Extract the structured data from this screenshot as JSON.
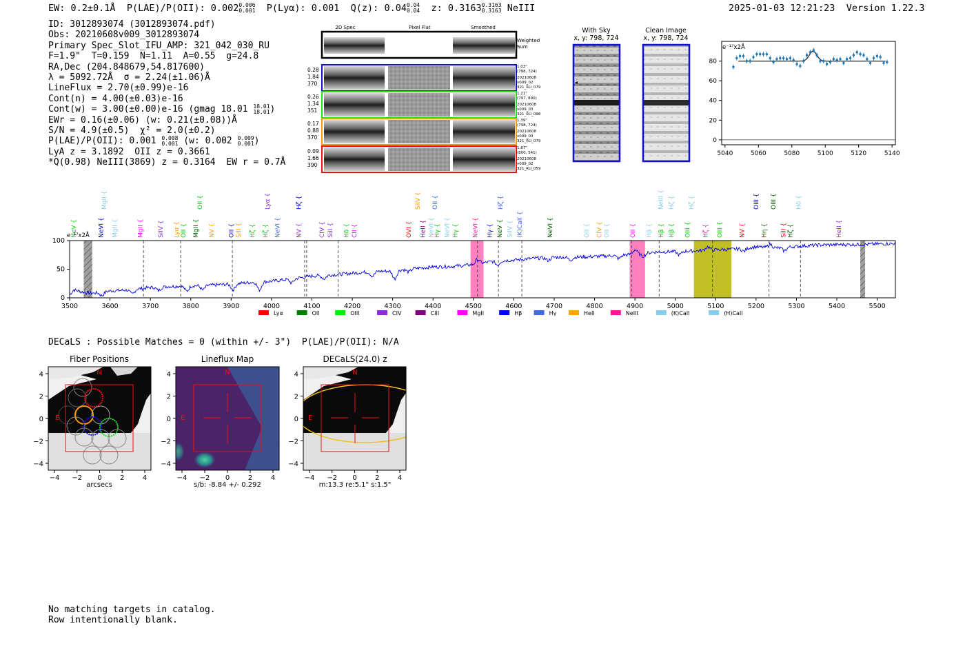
{
  "header": {
    "ew": "EW: 0.2±0.1Å",
    "plae_label": "P(LAE)/P(OII): 0.002",
    "plae_up": "0.006",
    "plae_lo": "0.001",
    "plya": "P(Lyα): 0.001",
    "qz": "Q(z): 0.04",
    "qz_up": "0.04",
    "qz_lo": "0.04",
    "z": "z: 0.3163",
    "z_up": "0.3163",
    "z_lo": "0.3163",
    "line": "NeIII",
    "timestamp": "2025-01-03 12:21:23",
    "version": "Version 1.22.3"
  },
  "info": {
    "id": "ID: 3012893074 (3012893074.pdf)",
    "obs": "Obs: 20210608v009_3012893074",
    "primary": "Primary Spec_Slot_IFU_AMP: 321_042_030_RU",
    "fibers": "F=1.9\"  T=0.159  N=1.11  A=0.55  g=24.8",
    "radec": "RA,Dec (204.848679,54.817600)",
    "lambda": "λ = 5092.72Å  σ = 2.24(±1.06)Å",
    "lineflux": "LineFlux = 2.70(±0.99)e-16",
    "contn": "Cont(n) = 4.00(±0.03)e-16",
    "contw": "Cont(w) = 3.00(±0.00)e-16 (gmag 18.01",
    "gmag_up": "18.01",
    "gmag_lo": "18.01",
    "ewr": "EWr = 0.16(±0.06) (w: 0.21(±0.08))Å",
    "sn": "S/N = 4.9(±0.5)  χ² = 2.0(±0.2)",
    "plae2": "P(LAE)/P(OII): 0.001",
    "plae2_up": "0.008",
    "plae2_lo": "0.001",
    "plae2_w": "(w: 0.002",
    "plae2_w_up": "0.009",
    "plae2_w_lo": "0.001",
    "lya_z": "LyA z = 3.1892  OII z = 0.3661",
    "q_line": "*Q(0.98) NeIII(3869) z = 0.3164  EW r = 0.7Å"
  },
  "cutouts": {
    "col_2d": "2D Spec",
    "col_flat": "Pixel Flat",
    "col_smooth": "Smoothed",
    "weighted": "Weighted",
    "sum": "Sum",
    "rows": [
      {
        "color": "#1010d0",
        "v1": "0.28",
        "v2": "1.84",
        "v3": "370",
        "r1": "1.03\"",
        "r2": "(798, 724)",
        "r3": "20210608",
        "r4": "v009_02",
        "r5": "321_RU_079"
      },
      {
        "color": "#22dd22",
        "v1": "0.26",
        "v2": "1.34",
        "v3": "351",
        "r1": "1.21\"",
        "r2": "(797, 890)",
        "r3": "20210608",
        "r4": "v009_03",
        "r5": "321_RU_098"
      },
      {
        "color": "#ff9900",
        "v1": "0.17",
        "v2": "0.88",
        "v3": "370",
        "r1": "1.39\"",
        "r2": "(798, 724)",
        "r3": "20210608",
        "r4": "v009_03",
        "r5": "321_RU_079"
      },
      {
        "color": "#ee1111",
        "v1": "0.09",
        "v2": "1.66",
        "v3": "390",
        "r1": "1.87\"",
        "r2": "(800, 541)",
        "r3": "20210608",
        "r4": "v009_02",
        "r5": "321_RU_059"
      }
    ]
  },
  "sky": {
    "with_title": "With Sky",
    "with_coords": "x, y: 798, 724",
    "clean_title": "Clean Image",
    "clean_coords": "x, y: 798, 724"
  },
  "chart_data": [
    {
      "type": "scatter",
      "name": "zoom_fit",
      "ylabel": "e⁻¹⁷x2Å",
      "xlim": [
        5038,
        5142
      ],
      "ylim": [
        -5,
        100
      ],
      "xticks": [
        5040,
        5060,
        5080,
        5100,
        5120,
        5140
      ],
      "yticks": [
        0,
        20,
        40,
        60,
        80
      ],
      "points": [
        [
          5045,
          74
        ],
        [
          5047,
          83
        ],
        [
          5049,
          85
        ],
        [
          5051,
          85
        ],
        [
          5053,
          80
        ],
        [
          5055,
          80
        ],
        [
          5057,
          84
        ],
        [
          5059,
          87
        ],
        [
          5061,
          87
        ],
        [
          5063,
          87
        ],
        [
          5065,
          87
        ],
        [
          5067,
          83
        ],
        [
          5069,
          79
        ],
        [
          5071,
          82
        ],
        [
          5073,
          83
        ],
        [
          5075,
          83
        ],
        [
          5077,
          82
        ],
        [
          5079,
          83
        ],
        [
          5081,
          81
        ],
        [
          5083,
          77
        ],
        [
          5085,
          75
        ],
        [
          5087,
          80
        ],
        [
          5089,
          86
        ],
        [
          5091,
          89
        ],
        [
          5093,
          91
        ],
        [
          5095,
          86
        ],
        [
          5097,
          80
        ],
        [
          5099,
          80
        ],
        [
          5101,
          77
        ],
        [
          5103,
          79
        ],
        [
          5105,
          82
        ],
        [
          5107,
          81
        ],
        [
          5109,
          82
        ],
        [
          5111,
          78
        ],
        [
          5113,
          82
        ],
        [
          5115,
          83
        ],
        [
          5117,
          86
        ],
        [
          5119,
          89
        ],
        [
          5121,
          87
        ],
        [
          5123,
          86
        ],
        [
          5125,
          82
        ],
        [
          5127,
          78
        ],
        [
          5129,
          83
        ],
        [
          5131,
          85
        ],
        [
          5133,
          84
        ],
        [
          5135,
          78
        ],
        [
          5137,
          79
        ]
      ],
      "fit": {
        "continuum": 80,
        "center": 5092.72,
        "sigma": 2.24,
        "amplitude": 10,
        "x_range": [
          5048,
          5136
        ]
      }
    },
    {
      "type": "line",
      "name": "full_spectrum",
      "ylabel": "e⁻¹⁷x2Å",
      "xlim": [
        3500,
        5545
      ],
      "ylim": [
        0,
        100
      ],
      "xticks": [
        3500,
        3600,
        3700,
        3800,
        3900,
        4000,
        4100,
        4200,
        4300,
        4400,
        4500,
        4600,
        4700,
        4800,
        4900,
        5000,
        5100,
        5200,
        5300,
        5400,
        5500
      ],
      "yticks": [
        0,
        50,
        100
      ],
      "anchors": [
        [
          3500,
          5
        ],
        [
          3510,
          14
        ],
        [
          3540,
          9
        ],
        [
          3560,
          8
        ],
        [
          3600,
          12
        ],
        [
          3650,
          14
        ],
        [
          3700,
          18
        ],
        [
          3750,
          20
        ],
        [
          3800,
          21
        ],
        [
          3850,
          22
        ],
        [
          3900,
          24
        ],
        [
          3950,
          27
        ],
        [
          4000,
          29
        ],
        [
          4050,
          33
        ],
        [
          4100,
          38
        ],
        [
          4150,
          40
        ],
        [
          4200,
          43
        ],
        [
          4250,
          46
        ],
        [
          4300,
          47
        ],
        [
          4350,
          51
        ],
        [
          4400,
          54
        ],
        [
          4450,
          55
        ],
        [
          4500,
          58
        ],
        [
          4550,
          64
        ],
        [
          4600,
          66
        ],
        [
          4650,
          69
        ],
        [
          4700,
          71
        ],
        [
          4750,
          71
        ],
        [
          4800,
          72
        ],
        [
          4850,
          74
        ],
        [
          4900,
          76
        ],
        [
          4950,
          80
        ],
        [
          5000,
          81
        ],
        [
          5050,
          82
        ],
        [
          5100,
          84
        ],
        [
          5150,
          85
        ],
        [
          5200,
          89
        ],
        [
          5250,
          87
        ],
        [
          5300,
          90
        ],
        [
          5350,
          92
        ],
        [
          5400,
          93
        ],
        [
          5450,
          93
        ],
        [
          5500,
          94
        ],
        [
          5545,
          95
        ]
      ],
      "dips": [
        [
          3580,
          -6
        ],
        [
          3655,
          -8
        ],
        [
          3720,
          -6
        ],
        [
          3790,
          -9
        ],
        [
          3830,
          -8
        ],
        [
          3905,
          -10
        ],
        [
          3970,
          -14
        ],
        [
          4050,
          -7
        ],
        [
          4130,
          -6
        ],
        [
          4250,
          -8
        ],
        [
          4305,
          -14
        ],
        [
          4340,
          -5
        ],
        [
          4560,
          -7
        ],
        [
          4685,
          -5
        ],
        [
          4740,
          -5
        ],
        [
          4860,
          -6
        ],
        [
          4920,
          -5
        ],
        [
          5010,
          -6
        ],
        [
          5170,
          -5
        ],
        [
          5270,
          -6
        ]
      ],
      "bumps": [
        [
          4510,
          8
        ],
        [
          4900,
          8
        ],
        [
          5080,
          6
        ],
        [
          5235,
          6
        ]
      ],
      "shaded_regions": [
        {
          "from": 4493,
          "to": 4525,
          "color": "#ff69b4"
        },
        {
          "from": 4887,
          "to": 4925,
          "color": "#ff69b4"
        },
        {
          "from": 5046,
          "to": 5139,
          "color": "#b5b500"
        }
      ],
      "masked_regions": [
        [
          3535,
          3556
        ],
        [
          5458,
          5470
        ]
      ],
      "dashed_lines": [
        3683,
        3775,
        3903,
        4082,
        4087,
        4165,
        4510,
        4562,
        4620,
        4892,
        4960,
        5092,
        5232,
        5310
      ],
      "legend": [
        {
          "label": "Lyα",
          "color": "#ff0000"
        },
        {
          "label": "OII",
          "color": "#008000"
        },
        {
          "label": "OIII",
          "color": "#00ee00"
        },
        {
          "label": "CIV",
          "color": "#8a2be2"
        },
        {
          "label": "CIII",
          "color": "#800080"
        },
        {
          "label": "MgII",
          "color": "#ff00ff"
        },
        {
          "label": "Hβ",
          "color": "#0000ff"
        },
        {
          "label": "Hγ",
          "color": "#4169e1"
        },
        {
          "label": "HeII",
          "color": "#ffa500"
        },
        {
          "label": "NeIII",
          "color": "#ff1493"
        },
        {
          "label": "(K)CaII",
          "color": "#87ceeb"
        },
        {
          "label": "(H)CaII",
          "color": "#87ceeb"
        }
      ]
    }
  ],
  "line_labels_row1": [
    {
      "t": "NeV",
      "c": "#00dd00",
      "w": 3510
    },
    {
      "t": "NeVI",
      "c": "#0000cc",
      "w": 3578
    },
    {
      "t": "MgII",
      "c": "#87ceeb",
      "w": 3612
    },
    {
      "t": "MgII",
      "c": "#ff00ff",
      "w": 3675
    },
    {
      "t": "SiIV",
      "c": "#8a2be2",
      "w": 3725
    },
    {
      "t": "Lyα",
      "c": "#ff9900",
      "w": 3765
    },
    {
      "t": "OII",
      "c": "#00cc00",
      "w": 3782
    },
    {
      "t": "MgII",
      "c": "#006400",
      "w": 3812
    },
    {
      "t": "NV",
      "c": "#ff9900",
      "w": 3852
    },
    {
      "t": "OII",
      "c": "#0000cc",
      "w": 3900
    },
    {
      "t": "SiII",
      "c": "#ff9900",
      "w": 3918
    },
    {
      "t": "Hζ",
      "c": "#00cc00",
      "w": 3952
    },
    {
      "t": "Hζ",
      "c": "#00cc00",
      "w": 3985
    },
    {
      "t": "NeVI",
      "c": "#4169e1",
      "w": 4015
    },
    {
      "t": "NV",
      "c": "#8a2be2",
      "w": 4068
    },
    {
      "t": "CIV",
      "c": "#8a2be2",
      "w": 4125
    },
    {
      "t": "SiII",
      "c": "#8a2be2",
      "w": 4145
    },
    {
      "t": "Hδ",
      "c": "#00cc00",
      "w": 4185
    },
    {
      "t": "CII",
      "c": "#ff00ff",
      "w": 4205
    },
    {
      "t": "OVI",
      "c": "#ff0000",
      "w": 4340
    },
    {
      "t": "HeII",
      "c": "#800080",
      "w": 4375
    },
    {
      "t": "NeVI",
      "c": "#87ceeb",
      "w": 4395
    },
    {
      "t": "Hγ",
      "c": "#00cc00",
      "w": 4410
    },
    {
      "t": "NeVI",
      "c": "#87ceeb",
      "w": 4435
    },
    {
      "t": "Hγ",
      "c": "#00cc00",
      "w": 4455
    },
    {
      "t": "NeVI",
      "c": "#ff1493",
      "w": 4505
    },
    {
      "t": "Hγ",
      "c": "#0000ff",
      "w": 4540
    },
    {
      "t": "NeV",
      "c": "#006400",
      "w": 4565
    },
    {
      "t": "SiIV",
      "c": "#87ceeb",
      "w": 4590
    },
    {
      "t": "(K)CaII",
      "c": "#4169e1",
      "w": 4615
    },
    {
      "t": "NeVI",
      "c": "#006400",
      "w": 4690
    },
    {
      "t": "OII",
      "c": "#87ceeb",
      "w": 4780
    },
    {
      "t": "CIV",
      "c": "#ff9900",
      "w": 4812
    },
    {
      "t": "OII",
      "c": "#87ceeb",
      "w": 4830
    },
    {
      "t": "OII",
      "c": "#ff00ff",
      "w": 4895
    },
    {
      "t": "Hβ",
      "c": "#87ceeb",
      "w": 4935
    },
    {
      "t": "Hβ",
      "c": "#00cc00",
      "w": 4965
    },
    {
      "t": "Hβ",
      "c": "#00cc00",
      "w": 4990
    },
    {
      "t": "OIII",
      "c": "#00cc00",
      "w": 5030
    },
    {
      "t": "Hζ",
      "c": "#ff1493",
      "w": 5075
    },
    {
      "t": "OIII",
      "c": "#00cc00",
      "w": 5110
    },
    {
      "t": "NV",
      "c": "#ff0000",
      "w": 5165
    },
    {
      "t": "Hη",
      "c": "#006400",
      "w": 5220
    },
    {
      "t": "SiII",
      "c": "#ff0000",
      "w": 5268
    },
    {
      "t": "Hζ",
      "c": "#006400",
      "w": 5285
    },
    {
      "t": "HeII",
      "c": "#8a2be2",
      "w": 5405
    }
  ],
  "line_labels_row2": [
    {
      "t": "MgII",
      "c": "#87ceeb",
      "w": 3585
    },
    {
      "t": "OII",
      "c": "#00cc00",
      "w": 3823
    },
    {
      "t": "Lyα",
      "c": "#8a2be2",
      "w": 3990
    },
    {
      "t": "Hζ",
      "c": "#0000cc",
      "w": 4068
    },
    {
      "t": "SiIV",
      "c": "#ff9900",
      "w": 4362
    },
    {
      "t": "OII",
      "c": "#4169e1",
      "w": 4405
    },
    {
      "t": "Hζ",
      "c": "#4169e1",
      "w": 4567
    },
    {
      "t": "NeIII",
      "c": "#87ceeb",
      "w": 4964
    },
    {
      "t": "Hζ",
      "c": "#87ceeb",
      "w": 4990
    },
    {
      "t": "Hζ",
      "c": "#87ceeb",
      "w": 5040
    },
    {
      "t": "OIII",
      "c": "#0000cc",
      "w": 5200
    },
    {
      "t": "OIII",
      "c": "#006400",
      "w": 5243
    },
    {
      "t": "Hδ",
      "c": "#87ceeb",
      "w": 5305
    }
  ],
  "decals": {
    "summary": "DECaLS : Possible Matches = 0 (within +/- 3\")  P(LAE)/P(OII): N/A",
    "panel1_title": "Fiber Positions",
    "panel1_xlabel": "arcsecs",
    "panel2_title": "Lineflux Map",
    "panel2_xlabel": "s/b: -8.84 +/- 0.292",
    "panel3_title": "DECaLS(24.0) z",
    "panel3_xlabel": "m:13.3  re:5.1\"  s:1.5\"",
    "ticks": [
      "4",
      "2",
      "0",
      "−2",
      "−4"
    ],
    "xticks": [
      "−4",
      "−2",
      "0",
      "2",
      "4"
    ],
    "north": "N",
    "east": "E"
  },
  "footer": {
    "line1": "No matching targets in catalog.",
    "line2": "Row intentionally blank."
  }
}
